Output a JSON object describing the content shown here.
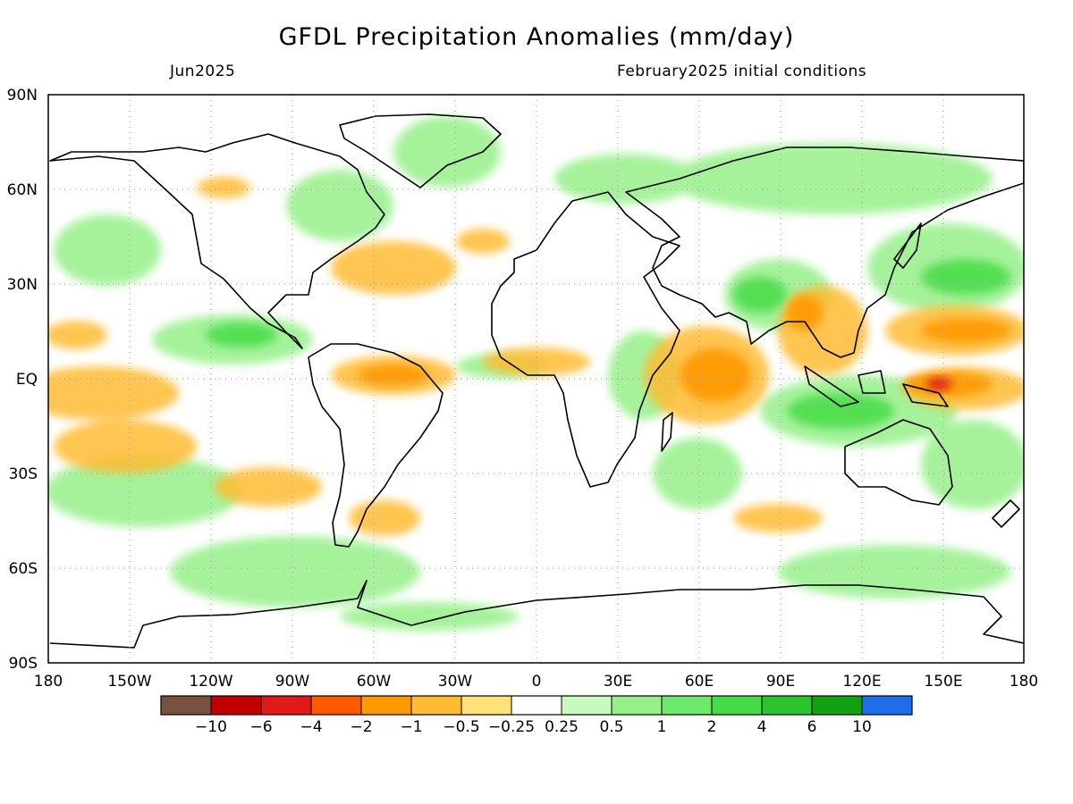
{
  "title": "GFDL Precipitation Anomalies (mm/day)",
  "valid_month": "Jun2025",
  "init_text": "February2025 initial conditions",
  "lat_labels": [
    "90N",
    "60N",
    "30N",
    "EQ",
    "30S",
    "60S",
    "90S"
  ],
  "lon_labels": [
    "180",
    "150W",
    "120W",
    "90W",
    "60W",
    "30W",
    "0",
    "30E",
    "60E",
    "90E",
    "120E",
    "150E",
    "180"
  ],
  "legend": {
    "colors": [
      "#7a5040",
      "#c00000",
      "#e01a1a",
      "#ff5a00",
      "#ff9900",
      "#ffbb33",
      "#ffe17a",
      "#ffffff",
      "#c8fac0",
      "#96f08a",
      "#6ee86a",
      "#46dc46",
      "#2cc42c",
      "#13a013",
      "#1e6ee8"
    ],
    "labels": [
      "-10",
      "-6",
      "-4",
      "-2",
      "-1",
      "-0.5",
      "-0.25",
      "0.25",
      "0.5",
      "1",
      "2",
      "4",
      "6",
      "10"
    ]
  },
  "legend_shown_labels": [
    "−10",
    "−6",
    "−4",
    "−2",
    "−1",
    "−0.5",
    "−0.25",
    "0.25",
    "0.5",
    "1",
    "2",
    "4",
    "6",
    "10"
  ]
}
